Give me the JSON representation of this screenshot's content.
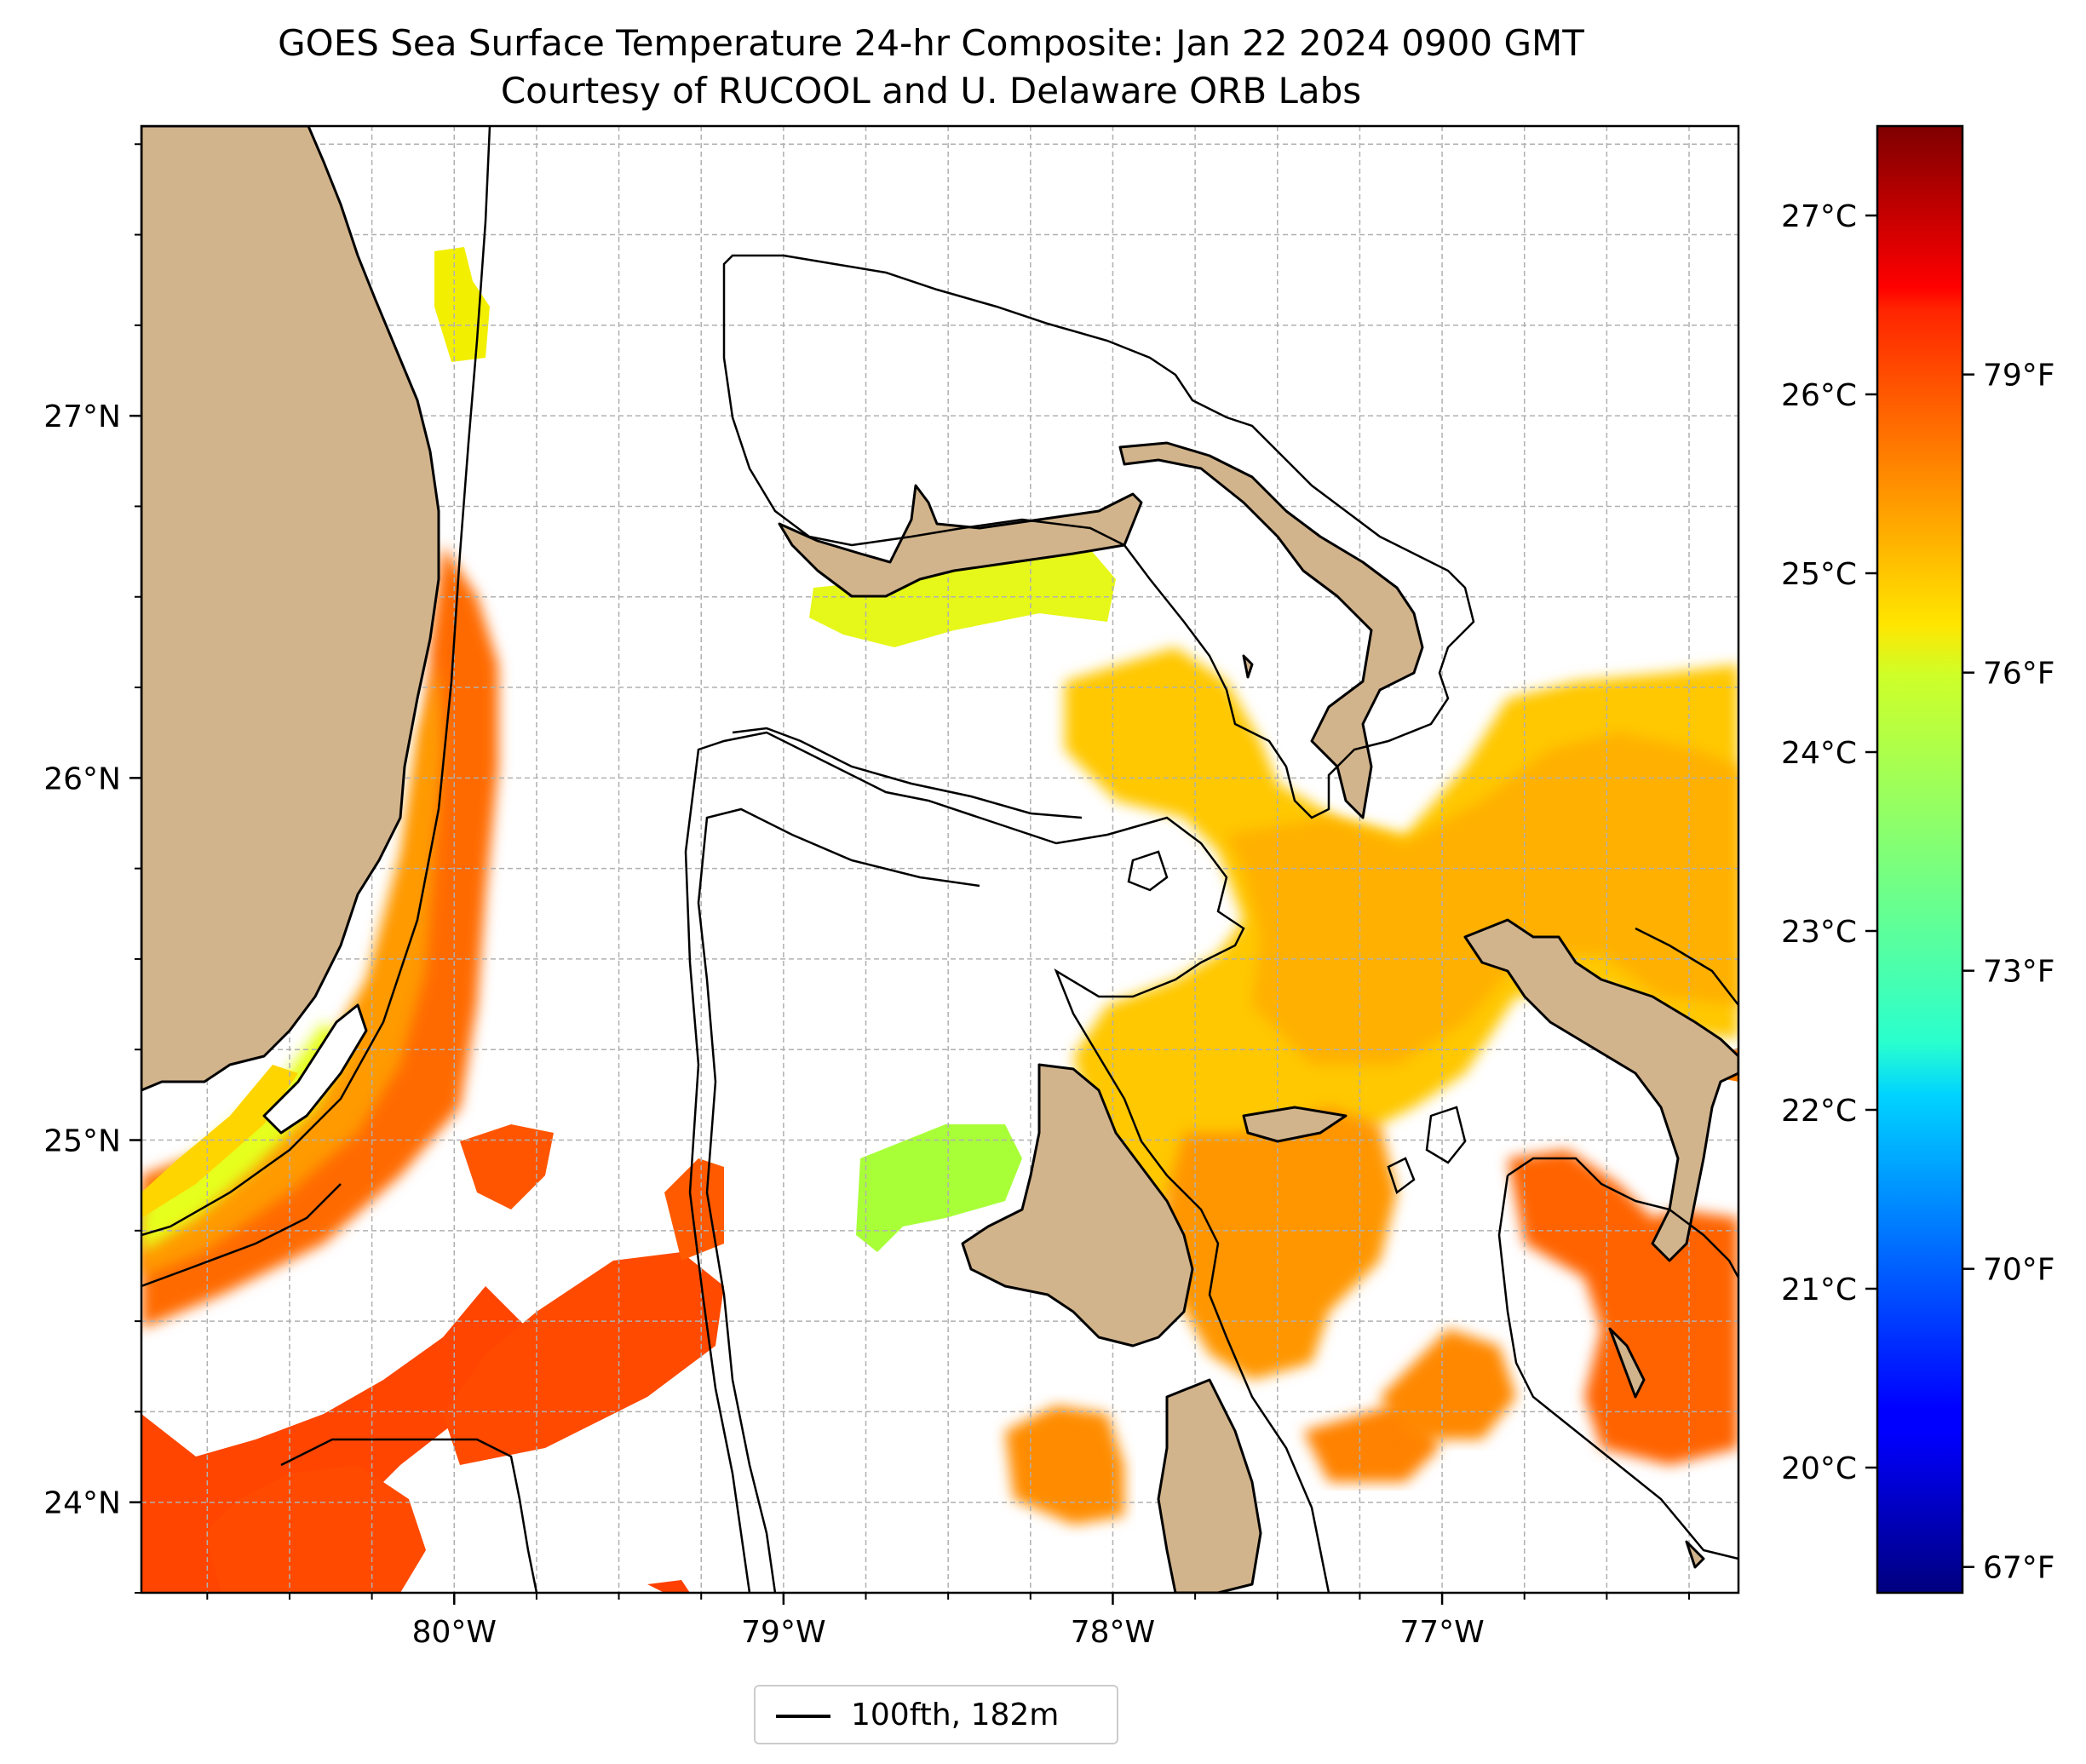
{
  "title_line1": "GOES Sea Surface Temperature 24-hr Composite: Jan 22 2024 0900 GMT",
  "title_line2": "Courtesy of RUCOOL and U. Delaware ORB Labs",
  "map": {
    "lon_range": [
      -80.95,
      -76.1
    ],
    "lat_range": [
      23.75,
      27.8
    ],
    "lon_ticks": [
      -80,
      -79,
      -78,
      -77
    ],
    "lon_labels": [
      "80°W",
      "79°W",
      "78°W",
      "77°W"
    ],
    "lat_ticks": [
      24,
      25,
      26,
      27
    ],
    "lat_labels": [
      "24°N",
      "25°N",
      "26°N",
      "27°N"
    ],
    "gridlines": true,
    "land_color": "#d2b48c",
    "contour": "100 fathom isobath"
  },
  "colorbar": {
    "colormap": "jet",
    "range_c": [
      19.3,
      27.5
    ],
    "celsius_labels": [
      "20°C",
      "21°C",
      "22°C",
      "23°C",
      "24°C",
      "25°C",
      "26°C",
      "27°C"
    ],
    "celsius_values": [
      20,
      21,
      22,
      23,
      24,
      25,
      26,
      27
    ],
    "fahrenheit_labels": [
      "67°F",
      "70°F",
      "73°F",
      "76°F",
      "79°F"
    ],
    "fahrenheit_values": [
      67,
      70,
      73,
      76,
      79
    ]
  },
  "legend": {
    "label": "100fth, 182m",
    "position": "bottom-center"
  }
}
